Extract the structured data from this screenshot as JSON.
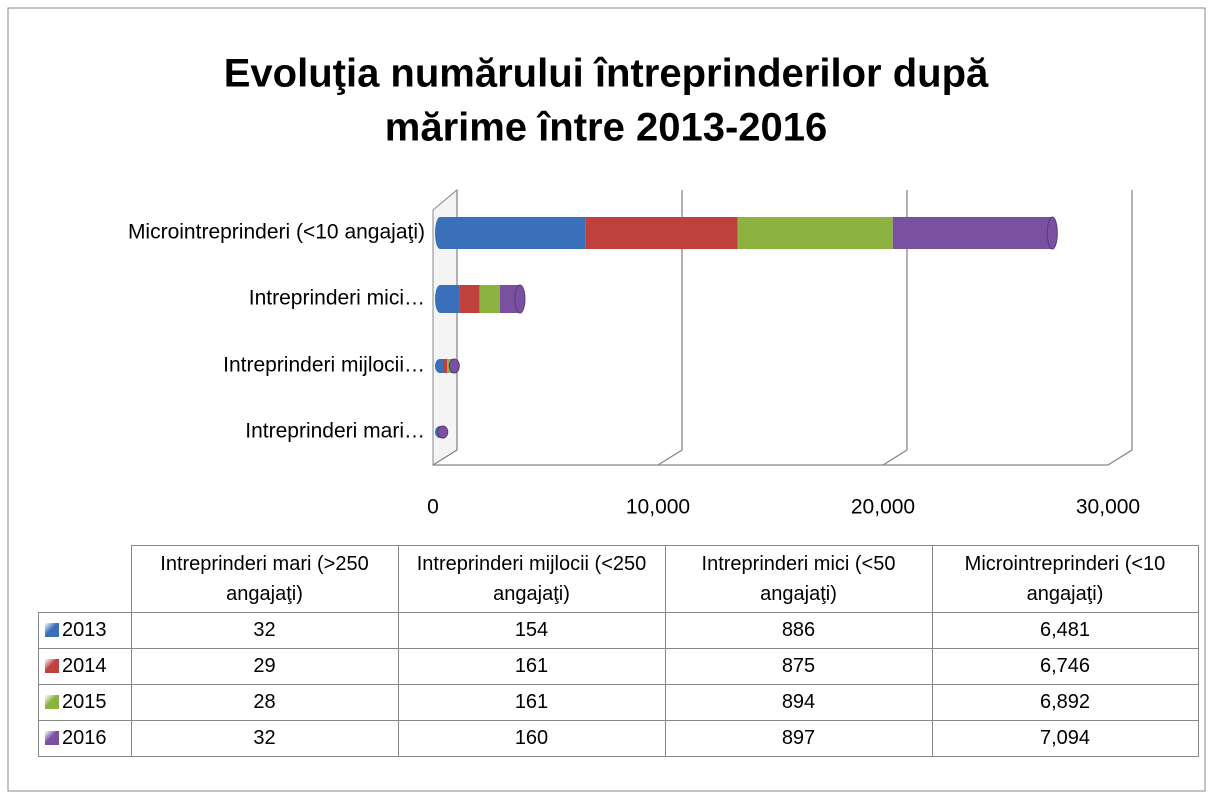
{
  "chart_data": {
    "type": "bar",
    "orientation": "horizontal",
    "stacked": true,
    "title": "Evoluţia numărului întreprinderilor după mărime între 2013-2016",
    "categories": [
      "Intreprinderi mari…",
      "Intreprinderi mijlocii…",
      "Intreprinderi mici…",
      "Microintreprinderi (<10 angajaţi)"
    ],
    "table_headers": [
      "Intreprinderi mari (>250 angajaţi)",
      "Intreprinderi mijlocii (<250 angajaţi)",
      "Intreprinderi mici (<50 angajaţi)",
      "Microintreprinderi (<10 angajaţi)"
    ],
    "series": [
      {
        "name": "2013",
        "color": "#3a6fba",
        "values": [
          32,
          154,
          886,
          6481
        ],
        "value_labels": [
          "32",
          "154",
          "886",
          "6,481"
        ]
      },
      {
        "name": "2014",
        "color": "#c0403e",
        "values": [
          29,
          161,
          875,
          6746
        ],
        "value_labels": [
          "29",
          "161",
          "875",
          "6,746"
        ]
      },
      {
        "name": "2015",
        "color": "#8cb33f",
        "values": [
          28,
          161,
          894,
          6892
        ],
        "value_labels": [
          "28",
          "161",
          "894",
          "6,892"
        ]
      },
      {
        "name": "2016",
        "color": "#7a50a0",
        "values": [
          32,
          160,
          897,
          7094
        ],
        "value_labels": [
          "32",
          "160",
          "897",
          "7,094"
        ]
      }
    ],
    "xlim": [
      0,
      30000
    ],
    "xticks": [
      0,
      {
        "value": 10000,
        "label": "10,000"
      },
      {
        "value": 20000,
        "label": "20,000"
      },
      {
        "value": 30000,
        "label": "30,000"
      }
    ],
    "grid": true
  }
}
